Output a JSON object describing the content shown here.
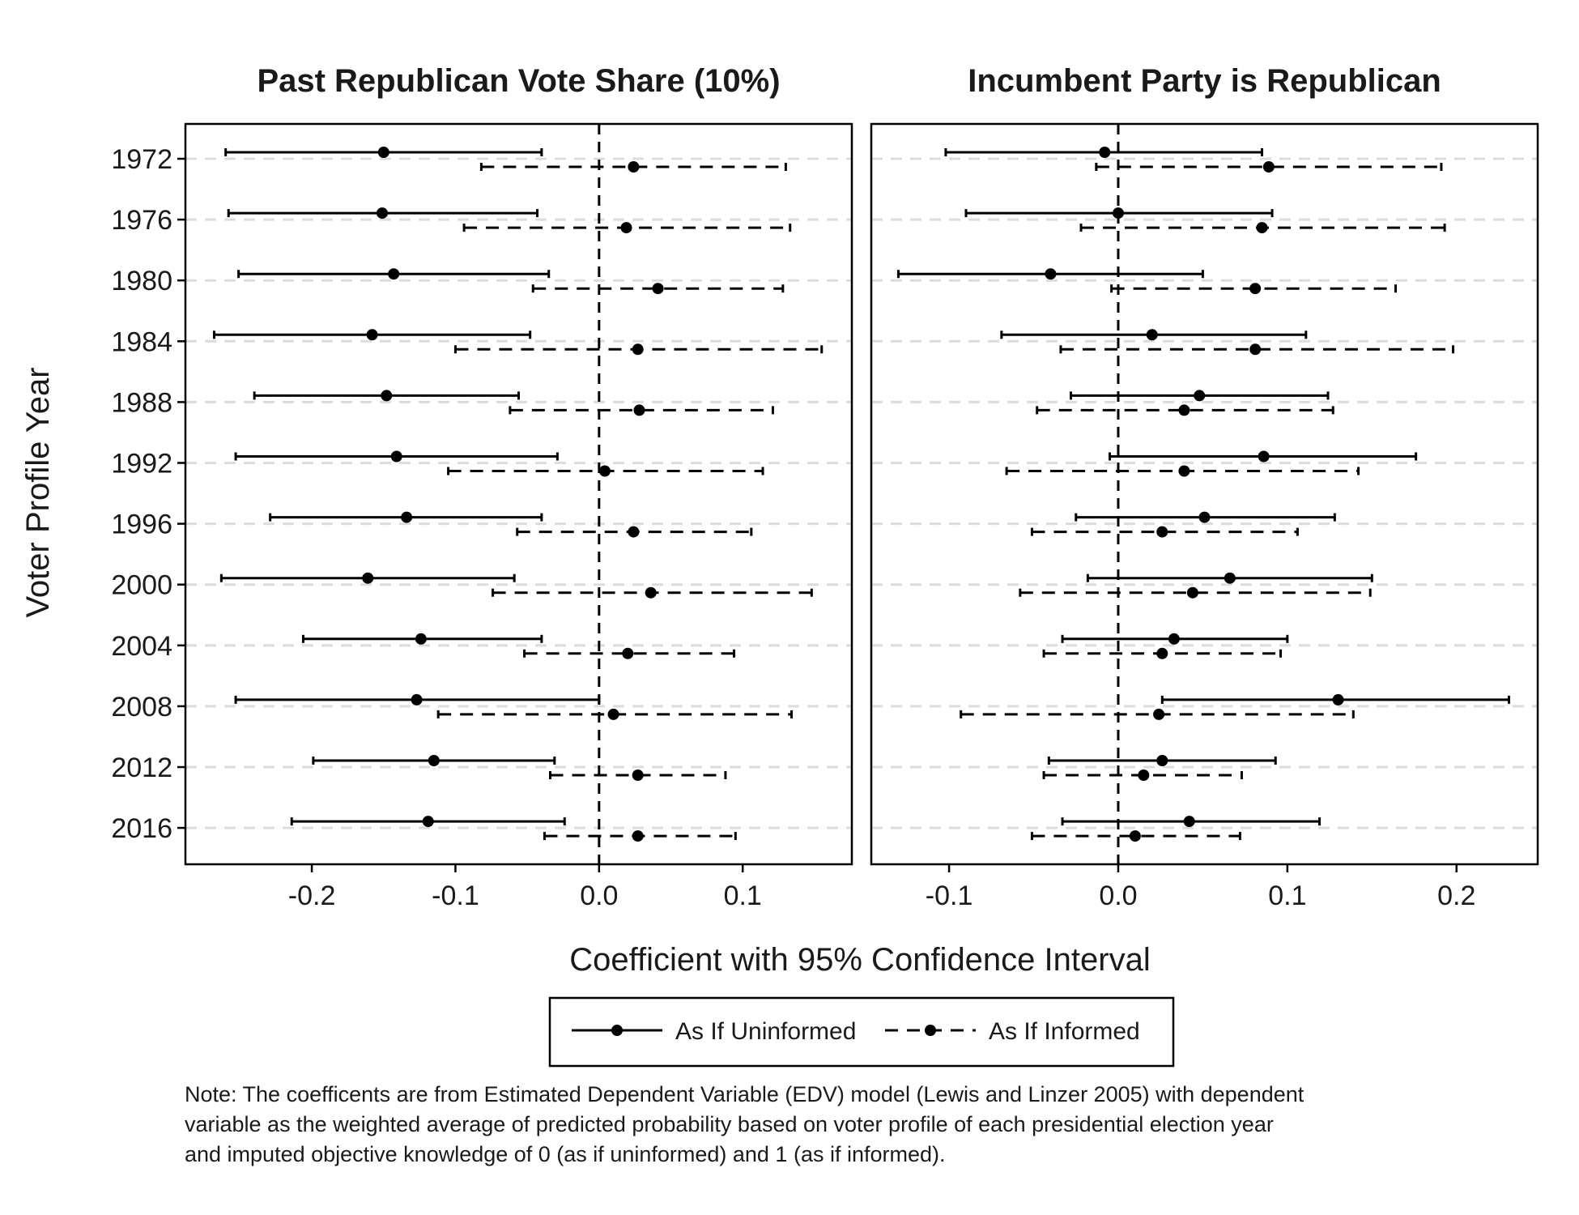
{
  "chart_data": [
    {
      "type": "forest",
      "title": "Past Republican Vote Share (10%)",
      "ylabel": "Voter Profile Year",
      "xlabel": "Coefficient with 95% Confidence Interval",
      "categories": [
        "1972",
        "1976",
        "1980",
        "1984",
        "1988",
        "1992",
        "1996",
        "2000",
        "2004",
        "2008",
        "2012",
        "2016"
      ],
      "xlim": [
        -0.288,
        0.176
      ],
      "xticks": [
        -0.2,
        -0.1,
        0.0,
        0.1
      ],
      "xtick_labels": [
        "-0.2",
        "-0.1",
        "0.0",
        "0.1"
      ],
      "reference_line": 0,
      "series": [
        {
          "name": "As If Uninformed",
          "line": "solid",
          "estimates": [
            -0.15,
            -0.151,
            -0.143,
            -0.158,
            -0.148,
            -0.141,
            -0.134,
            -0.161,
            -0.124,
            -0.127,
            -0.115,
            -0.119
          ],
          "lower": [
            -0.26,
            -0.258,
            -0.251,
            -0.268,
            -0.24,
            -0.253,
            -0.229,
            -0.263,
            -0.206,
            -0.253,
            -0.199,
            -0.214
          ],
          "upper": [
            -0.04,
            -0.043,
            -0.035,
            -0.048,
            -0.056,
            -0.029,
            -0.04,
            -0.059,
            -0.04,
            0.0,
            -0.031,
            -0.024
          ]
        },
        {
          "name": "As If Informed",
          "line": "dashed",
          "estimates": [
            0.024,
            0.019,
            0.041,
            0.027,
            0.028,
            0.004,
            0.024,
            0.036,
            0.02,
            0.01,
            0.027,
            0.027
          ],
          "lower": [
            -0.082,
            -0.094,
            -0.046,
            -0.1,
            -0.062,
            -0.105,
            -0.057,
            -0.074,
            -0.052,
            -0.112,
            -0.034,
            -0.038
          ],
          "upper": [
            0.13,
            0.133,
            0.128,
            0.155,
            0.121,
            0.114,
            0.106,
            0.148,
            0.094,
            0.134,
            0.088,
            0.095
          ]
        }
      ]
    },
    {
      "type": "forest",
      "title": "Incumbent Party is Republican",
      "categories": [
        "1972",
        "1976",
        "1980",
        "1984",
        "1988",
        "1992",
        "1996",
        "2000",
        "2004",
        "2008",
        "2012",
        "2016"
      ],
      "xlim": [
        -0.146,
        0.248
      ],
      "xticks": [
        -0.1,
        0.0,
        0.1,
        0.2
      ],
      "xtick_labels": [
        "-0.1",
        "0.0",
        "0.1",
        "0.2"
      ],
      "reference_line": 0,
      "series": [
        {
          "name": "As If Uninformed",
          "line": "solid",
          "estimates": [
            -0.008,
            0.0,
            -0.04,
            0.02,
            0.048,
            0.086,
            0.051,
            0.066,
            0.033,
            0.13,
            0.026,
            0.042
          ],
          "lower": [
            -0.102,
            -0.09,
            -0.13,
            -0.069,
            -0.028,
            -0.005,
            -0.025,
            -0.018,
            -0.033,
            0.026,
            -0.041,
            -0.033
          ],
          "upper": [
            0.085,
            0.091,
            0.05,
            0.111,
            0.124,
            0.176,
            0.128,
            0.15,
            0.1,
            0.231,
            0.093,
            0.119
          ]
        },
        {
          "name": "As If Informed",
          "line": "dashed",
          "estimates": [
            0.089,
            0.085,
            0.081,
            0.081,
            0.039,
            0.039,
            0.026,
            0.044,
            0.026,
            0.024,
            0.015,
            0.01
          ],
          "lower": [
            -0.013,
            -0.022,
            -0.004,
            -0.034,
            -0.048,
            -0.066,
            -0.051,
            -0.058,
            -0.044,
            -0.093,
            -0.044,
            -0.051
          ],
          "upper": [
            0.191,
            0.193,
            0.164,
            0.198,
            0.127,
            0.142,
            0.106,
            0.149,
            0.096,
            0.139,
            0.073,
            0.072
          ]
        }
      ]
    }
  ],
  "legend": {
    "position": "bottom",
    "entries": [
      {
        "label": "As If Uninformed",
        "line": "solid"
      },
      {
        "label": "As If Informed",
        "line": "dashed"
      }
    ]
  },
  "note": {
    "lines": [
      "Note: The coefficents are from Estimated Dependent Variable (EDV) model (Lewis and Linzer 2005) with dependent",
      "variable as the weighted average of predicted probability based on voter profile of each presidential election year",
      "and imputed objective knowledge of 0 (as if uninformed) and 1 (as if informed)."
    ]
  },
  "colors": {
    "ink": "#000000",
    "grid": "#dcdcdc",
    "text": "#1a1a1a",
    "background": "#ffffff"
  }
}
